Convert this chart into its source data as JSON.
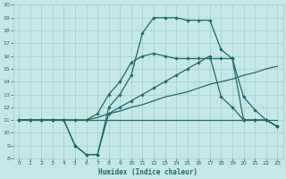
{
  "xlabel": "Humidex (Indice chaleur)",
  "background_color": "#c5e8e5",
  "grid_color": "#9fcfcc",
  "line_color": "#1e6b68",
  "xlim": [
    -0.5,
    23.5
  ],
  "ylim": [
    8,
    20
  ],
  "xticks": [
    0,
    1,
    2,
    3,
    4,
    5,
    6,
    7,
    8,
    9,
    10,
    11,
    12,
    13,
    14,
    15,
    16,
    17,
    18,
    19,
    20,
    21,
    22,
    23
  ],
  "yticks": [
    8,
    9,
    10,
    11,
    12,
    13,
    14,
    15,
    16,
    17,
    18,
    19,
    20
  ],
  "line_flat_x": [
    0,
    1,
    2,
    3,
    4,
    5,
    6,
    7,
    8,
    9,
    10,
    11,
    12,
    13,
    14,
    15,
    16,
    17,
    18,
    19,
    20,
    21,
    22,
    23
  ],
  "line_flat_y": [
    11,
    11,
    11,
    11,
    11,
    11,
    11,
    11,
    11,
    11,
    11,
    11,
    11,
    11,
    11,
    11,
    11,
    11,
    11,
    11,
    11,
    11,
    11,
    11
  ],
  "line_diag_x": [
    0,
    1,
    2,
    3,
    4,
    5,
    6,
    7,
    8,
    9,
    10,
    11,
    12,
    13,
    14,
    15,
    16,
    17,
    18,
    19,
    20,
    21,
    22,
    23
  ],
  "line_diag_y": [
    11,
    11,
    11,
    11,
    11,
    11,
    11,
    11.2,
    11.5,
    11.7,
    12,
    12.2,
    12.5,
    12.8,
    13,
    13.2,
    13.5,
    13.8,
    14,
    14.2,
    14.5,
    14.7,
    15,
    15.2
  ],
  "line_dip_x": [
    0,
    1,
    2,
    3,
    4,
    5,
    6,
    7,
    8,
    9,
    10,
    11,
    12,
    13,
    14,
    15,
    16,
    17,
    18,
    19,
    20,
    21,
    22,
    23
  ],
  "line_dip_y": [
    11,
    11,
    11,
    11,
    11,
    9,
    8.3,
    8.3,
    11.5,
    12,
    12.5,
    13,
    13.5,
    14,
    14.5,
    15,
    15.5,
    16,
    12.8,
    12,
    11,
    11,
    11,
    10.5
  ],
  "line_rise_x": [
    0,
    1,
    2,
    3,
    4,
    5,
    6,
    7,
    8,
    9,
    10,
    11,
    12,
    13,
    14,
    15,
    16,
    17,
    18,
    19,
    20,
    21,
    22,
    23
  ],
  "line_rise_y": [
    11,
    11,
    11,
    11,
    11,
    11,
    11,
    11.5,
    13,
    14,
    15.5,
    16,
    16.2,
    16,
    15.8,
    15.8,
    15.8,
    15.8,
    15.8,
    15.8,
    11,
    11,
    11,
    10.5
  ],
  "line_peak_x": [
    0,
    1,
    2,
    3,
    4,
    5,
    6,
    7,
    8,
    9,
    10,
    11,
    12,
    13,
    14,
    15,
    16,
    17,
    18,
    19,
    20,
    21,
    22,
    23
  ],
  "line_peak_y": [
    11,
    11,
    11,
    11,
    11,
    9,
    8.3,
    8.3,
    12,
    13,
    14.5,
    17.8,
    19,
    19,
    19,
    18.8,
    18.8,
    18.8,
    16.5,
    15.8,
    12.8,
    11.8,
    11,
    10.5
  ]
}
